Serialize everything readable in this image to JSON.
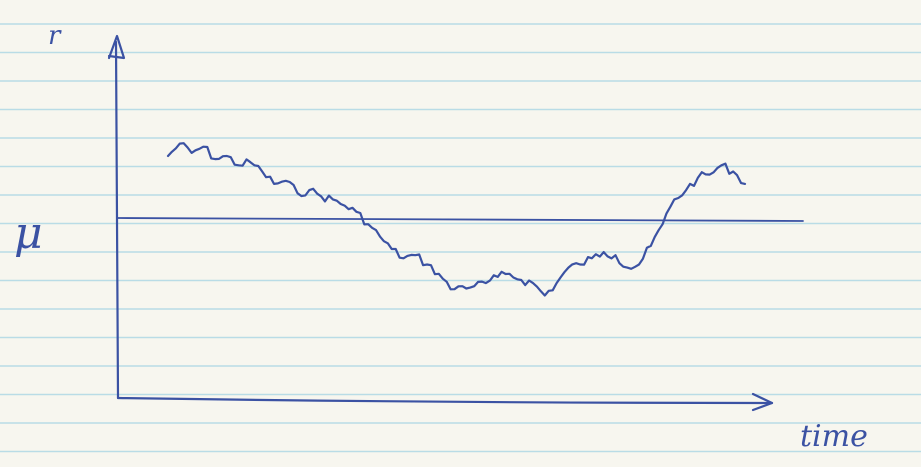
{
  "colors": {
    "paper": "#f7f6ef",
    "rule": "#b9dce6",
    "ink": "#3b52a3"
  },
  "chart_data": {
    "type": "line",
    "title": "",
    "xlabel": "time",
    "ylabel": "r",
    "mean_label": "μ",
    "mean_value": 0,
    "grid": false,
    "series": [
      {
        "values": [
          1.0,
          1.2,
          1.05,
          1.15,
          0.95,
          1.0,
          0.85,
          0.9,
          0.75,
          0.55,
          0.6,
          0.4,
          0.45,
          0.35,
          0.3,
          0.2,
          0.1,
          -0.1,
          -0.3,
          -0.5,
          -0.65,
          -0.6,
          -0.75,
          -0.9,
          -1.15,
          -1.1,
          -1.1,
          -1.05,
          -0.95,
          -0.9,
          -1.0,
          -1.05,
          -1.25,
          -1.05,
          -0.8,
          -0.75,
          -0.65,
          -0.55,
          -0.6,
          -0.8,
          -0.75,
          -0.45,
          -0.1,
          0.3,
          0.45,
          0.65,
          0.7,
          0.85,
          0.75,
          0.55
        ]
      }
    ]
  }
}
